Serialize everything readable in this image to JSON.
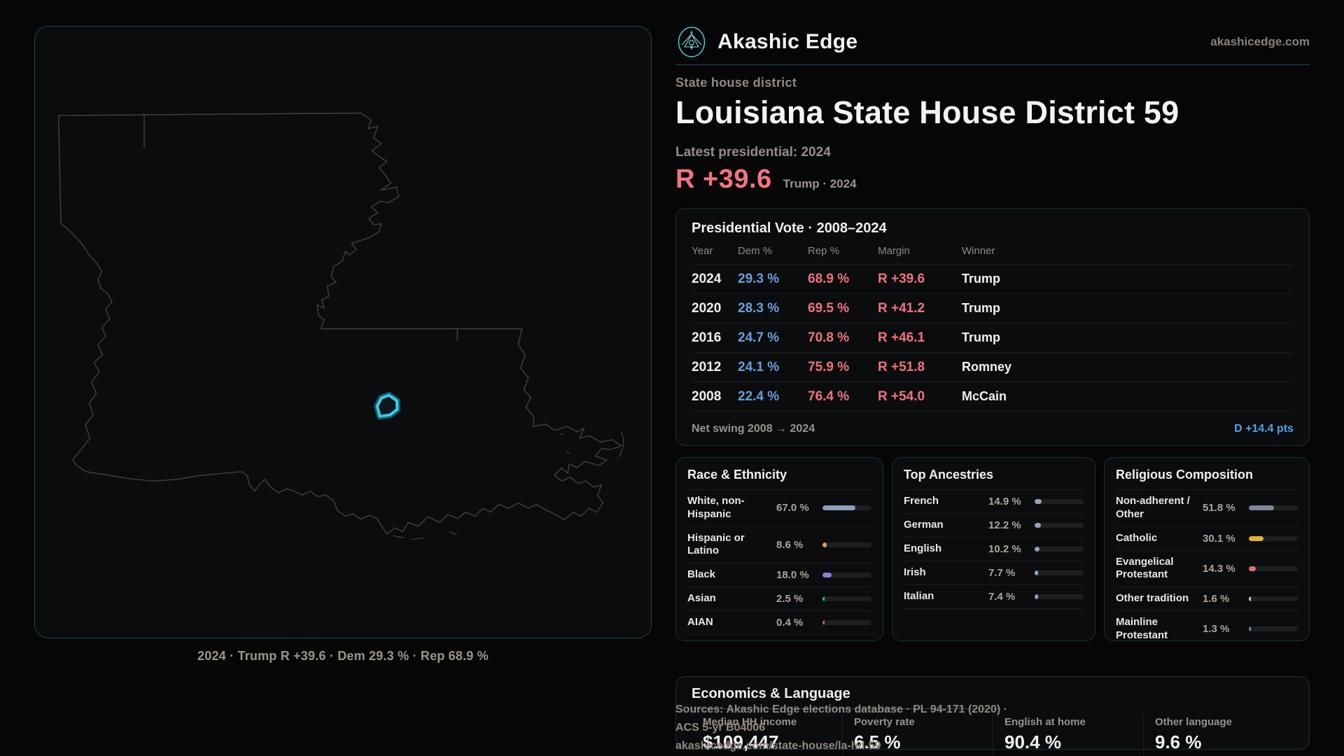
{
  "brand": {
    "name": "Akashic Edge",
    "domain": "akashicedge.com"
  },
  "header": {
    "kicker": "State house district",
    "title": "Louisiana State House District 59",
    "latest_label": "Latest presidential: 2024",
    "headline_margin": "R +39.6",
    "headline_sub": "Trump · 2024"
  },
  "map": {
    "caption": "2024 · Trump R +39.6 · Dem 29.3 % · Rep 68.9 %"
  },
  "elections": {
    "title": "Presidential Vote · 2008–2024",
    "columns": [
      "Year",
      "Dem %",
      "Rep %",
      "Margin",
      "Winner"
    ],
    "rows": [
      {
        "year": "2024",
        "dem": "29.3 %",
        "rep": "68.9 %",
        "margin": "R +39.6",
        "winner": "Trump"
      },
      {
        "year": "2020",
        "dem": "28.3 %",
        "rep": "69.5 %",
        "margin": "R +41.2",
        "winner": "Trump"
      },
      {
        "year": "2016",
        "dem": "24.7 %",
        "rep": "70.8 %",
        "margin": "R +46.1",
        "winner": "Trump"
      },
      {
        "year": "2012",
        "dem": "24.1 %",
        "rep": "75.9 %",
        "margin": "R +51.8",
        "winner": "Romney"
      },
      {
        "year": "2008",
        "dem": "22.4 %",
        "rep": "76.4 %",
        "margin": "R +54.0",
        "winner": "McCain"
      }
    ],
    "footer_label": "Net swing 2008 → 2024",
    "footer_value": "D +14.4 pts"
  },
  "demographics": [
    {
      "title": "Race & Ethnicity",
      "rows": [
        {
          "label": "White, non-Hispanic",
          "value": "67.0 %",
          "pct": 67.0,
          "color": "#8d9fbc"
        },
        {
          "label": "Hispanic or Latino",
          "value": "8.6 %",
          "pct": 8.6,
          "color": "#e8a33d"
        },
        {
          "label": "Black",
          "value": "18.0 %",
          "pct": 18.0,
          "color": "#8f7de0"
        },
        {
          "label": "Asian",
          "value": "2.5 %",
          "pct": 2.5,
          "color": "#2bbf8a"
        },
        {
          "label": "AIAN",
          "value": "0.4 %",
          "pct": 0.4,
          "color": "#bf6a2a"
        }
      ]
    },
    {
      "title": "Top Ancestries",
      "rows": [
        {
          "label": "French",
          "value": "14.9 %",
          "pct": 14.9,
          "color": "#8ea4c0"
        },
        {
          "label": "German",
          "value": "12.2 %",
          "pct": 12.2,
          "color": "#8ea4c0"
        },
        {
          "label": "English",
          "value": "10.2 %",
          "pct": 10.2,
          "color": "#8ea4c0"
        },
        {
          "label": "Irish",
          "value": "7.7 %",
          "pct": 7.7,
          "color": "#8ea4c0"
        },
        {
          "label": "Italian",
          "value": "7.4 %",
          "pct": 7.4,
          "color": "#8ea4c0"
        }
      ]
    },
    {
      "title": "Religious Composition",
      "rows": [
        {
          "label": "Non-adherent / Other",
          "value": "51.8 %",
          "pct": 51.8,
          "color": "#7e8899"
        },
        {
          "label": "Catholic",
          "value": "30.1 %",
          "pct": 30.1,
          "color": "#e7b32a"
        },
        {
          "label": "Evangelical Protestant",
          "value": "14.3 %",
          "pct": 14.3,
          "color": "#e66d72"
        },
        {
          "label": "Other tradition",
          "value": "1.6 %",
          "pct": 1.6,
          "color": "#c9ccd1"
        },
        {
          "label": "Mainline Protestant",
          "value": "1.3 %",
          "pct": 1.3,
          "color": "#5b8fd8"
        }
      ]
    }
  ],
  "economics": {
    "title": "Economics & Language",
    "stats": [
      {
        "label": "Median HH income",
        "value": "$109,447"
      },
      {
        "label": "Poverty rate",
        "value": "6.5 %"
      },
      {
        "label": "English at home",
        "value": "90.4 %"
      },
      {
        "label": "Other language",
        "value": "9.6 %"
      }
    ]
  },
  "sources": {
    "line1": "Sources: Akashic Edge elections database · PL 94-171 (2020) · ACS 5-yr B04006",
    "line2": "akashicedge.com/state-house/la-hd-59"
  },
  "colors": {
    "dem_blue": "#62a0dc",
    "rep_red": "#ef727e",
    "headline_red": "#f4737f",
    "swing_blue": "#4da3ec",
    "accent_teal": "#38cdeb",
    "card_border": "#16333c"
  }
}
